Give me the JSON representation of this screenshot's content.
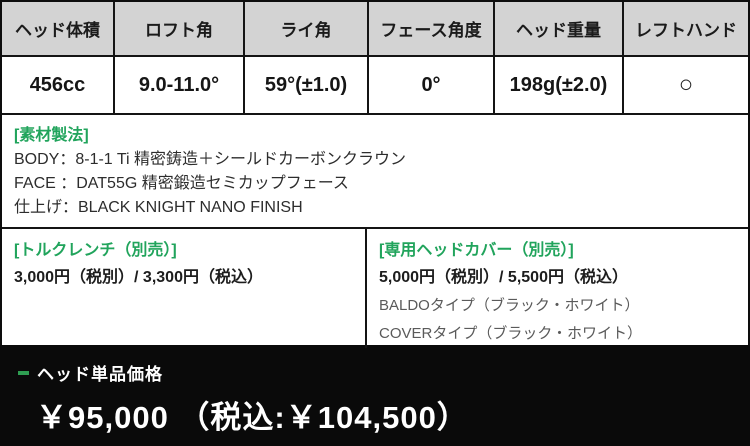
{
  "spec_table": {
    "headers": [
      "ヘッド体積",
      "ロフト角",
      "ライ角",
      "フェース角度",
      "ヘッド重量",
      "レフトハンド"
    ],
    "values": [
      "456cc",
      "9.0-11.0°",
      "59°(±1.0)",
      "0°",
      "198g(±2.0)",
      "○"
    ]
  },
  "material": {
    "label": "[素材製法]",
    "lines": [
      "BODY：8-1-1 Ti 精密鋳造＋シールドカーボンクラウン",
      "FACE ：DAT55G 精密鍛造セミカップフェース",
      "仕上げ：BLACK KNIGHT NANO FINISH"
    ]
  },
  "options": {
    "wrench": {
      "label": "[トルクレンチ（別売）]",
      "price": "3,000円（税別）/ 3,300円（税込）"
    },
    "headcover": {
      "label": "[専用ヘッドカバー（別売）]",
      "price": "5,000円（税別）/ 5,500円（税込）",
      "variants": [
        "BALDOタイプ（ブラック・ホワイト）",
        "COVERタイプ（ブラック・ホワイト）"
      ]
    }
  },
  "price_bar": {
    "label": "ヘッド単品価格",
    "price": "￥95,000 （税込:￥104,500）"
  },
  "colors": {
    "accent_green": "#21a45c",
    "bullet_green": "#2f9e52",
    "header_bg": "#d3d3d3",
    "border_black": "#141414",
    "price_bar_bg": "#0a0a0a"
  }
}
